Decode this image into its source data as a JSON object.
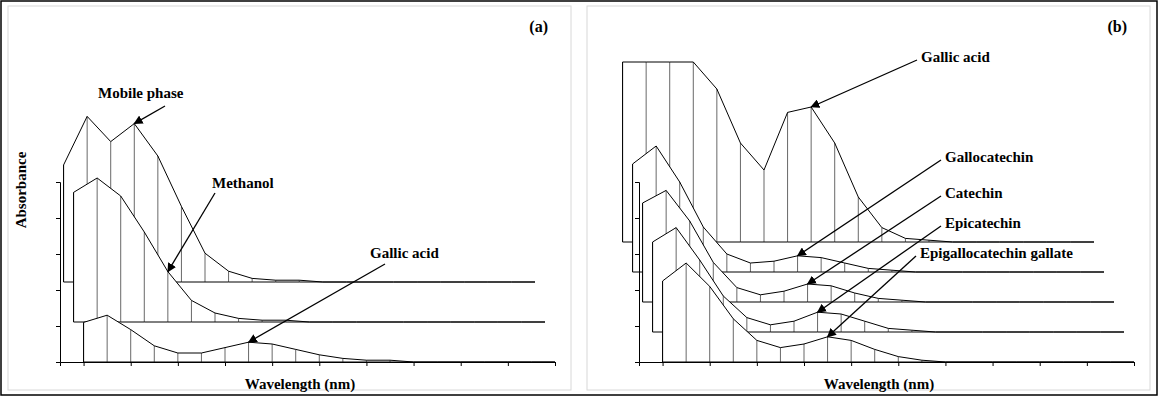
{
  "chart_data": [
    {
      "type": "line",
      "title": "(a)",
      "x_label": "Wavelength (nm)",
      "y_label": "Absorbance",
      "x": [
        200,
        210,
        220,
        230,
        240,
        250,
        260,
        270,
        280,
        290,
        300,
        310,
        320,
        330,
        340,
        350,
        360,
        370,
        380,
        390,
        400
      ],
      "xlim": [
        190,
        400
      ],
      "xticks": [
        200,
        220,
        240,
        260,
        280,
        300,
        320,
        340,
        360,
        380,
        400
      ],
      "ylim": [
        0,
        100
      ],
      "yticks": [
        0,
        20,
        40,
        60,
        80,
        100
      ],
      "tick_labels": false,
      "series": [
        {
          "name": "Mobile phase",
          "color": "#000000",
          "values": [
            65,
            92,
            78,
            88,
            70,
            42,
            16,
            6,
            2,
            1,
            1,
            0,
            0,
            0,
            0,
            0,
            0,
            0,
            0,
            0,
            0
          ]
        },
        {
          "name": "Methanol",
          "color": "#000000",
          "values": [
            72,
            80,
            70,
            50,
            28,
            12,
            5,
            2,
            1,
            1,
            0,
            0,
            0,
            0,
            0,
            0,
            0,
            0,
            0,
            0,
            0
          ]
        },
        {
          "name": "Gallic acid",
          "color": "#000000",
          "values": [
            22,
            26,
            18,
            9,
            5,
            5,
            8,
            11,
            10,
            7,
            4,
            2,
            1,
            1,
            0,
            0,
            0,
            0,
            0,
            0,
            0
          ]
        }
      ]
    },
    {
      "type": "line",
      "title": "(b)",
      "x_label": "Wavelength (nm)",
      "x": [
        200,
        210,
        220,
        230,
        240,
        250,
        260,
        270,
        280,
        290,
        300,
        310,
        320,
        330,
        340,
        350,
        360,
        370,
        380,
        390,
        400
      ],
      "xlim": [
        190,
        400
      ],
      "xticks": [
        200,
        220,
        240,
        260,
        280,
        300,
        320,
        340,
        360,
        380,
        400
      ],
      "ylim": [
        0,
        100
      ],
      "yticks": [
        0,
        20,
        40,
        60,
        80,
        100
      ],
      "tick_labels": false,
      "series": [
        {
          "name": "Gallic acid",
          "color": "#000000",
          "values": [
            100,
            100,
            100,
            100,
            85,
            55,
            40,
            72,
            75,
            55,
            25,
            8,
            2,
            1,
            0,
            0,
            0,
            0,
            0,
            0,
            0
          ]
        },
        {
          "name": "Gallocatechin",
          "color": "#000000",
          "values": [
            60,
            70,
            50,
            25,
            10,
            5,
            6,
            9,
            8,
            5,
            2,
            1,
            0,
            0,
            0,
            0,
            0,
            0,
            0,
            0,
            0
          ]
        },
        {
          "name": "Catechin",
          "color": "#000000",
          "values": [
            55,
            62,
            45,
            22,
            8,
            4,
            6,
            10,
            9,
            5,
            2,
            1,
            0,
            0,
            0,
            0,
            0,
            0,
            0,
            0,
            0
          ]
        },
        {
          "name": "Epicatechin",
          "color": "#000000",
          "values": [
            50,
            58,
            40,
            20,
            8,
            4,
            6,
            11,
            10,
            6,
            2,
            1,
            0,
            0,
            0,
            0,
            0,
            0,
            0,
            0,
            0
          ]
        },
        {
          "name": "Epigallocatechin gallate",
          "color": "#000000",
          "values": [
            45,
            55,
            42,
            24,
            12,
            8,
            10,
            14,
            12,
            7,
            3,
            1,
            0,
            0,
            0,
            0,
            0,
            0,
            0,
            0,
            0
          ]
        }
      ]
    }
  ]
}
